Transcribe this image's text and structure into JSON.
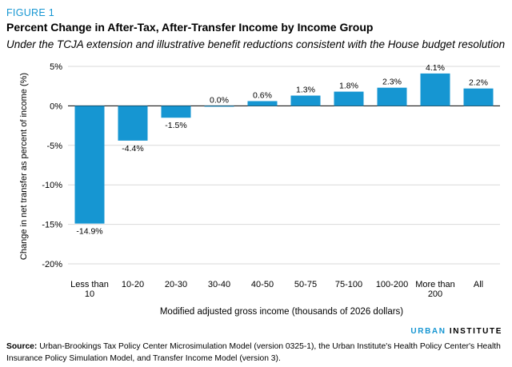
{
  "figure_label": "FIGURE 1",
  "brand": {
    "part1": "URBAN",
    "part2": "INSTITUTE"
  },
  "source": {
    "label": "Source:",
    "text": "Urban-Brookings Tax Policy Center Microsimulation Model (version 0325-1), the Urban Institute's Health Policy Center's Health Insurance Policy Simulation Model, and Transfer Income Model (version 3)."
  },
  "colors": {
    "bar": "#1696d2",
    "accent": "#1696d2",
    "grid": "#d9d9d9"
  },
  "chart_data": {
    "type": "bar",
    "title": "Percent Change in After-Tax, After-Transfer Income by Income Group",
    "subtitle": "Under the TCJA extension and illustrative benefit reductions consistent with the House budget resolution",
    "xlabel": "Modified adjusted gross income (thousands of 2026 dollars)",
    "ylabel": "Change in net transfer as percent of income (%)",
    "categories": [
      "Less than 10",
      "10-20",
      "20-30",
      "30-40",
      "40-50",
      "50-75",
      "75-100",
      "100-200",
      "More than 200",
      "All"
    ],
    "category_lines": [
      [
        "Less than",
        "10"
      ],
      [
        "10-20"
      ],
      [
        "20-30"
      ],
      [
        "30-40"
      ],
      [
        "40-50"
      ],
      [
        "50-75"
      ],
      [
        "75-100"
      ],
      [
        "100-200"
      ],
      [
        "More than",
        "200"
      ],
      [
        "All"
      ]
    ],
    "values": [
      -14.9,
      -4.4,
      -1.5,
      0.0,
      0.6,
      1.3,
      1.8,
      2.3,
      4.1,
      2.2
    ],
    "data_labels": [
      "-14.9%",
      "-4.4%",
      "-1.5%",
      "0.0%",
      "0.6%",
      "1.3%",
      "1.8%",
      "2.3%",
      "4.1%",
      "2.2%"
    ],
    "ylim": [
      -20,
      5
    ],
    "yticks": [
      5,
      0,
      -5,
      -10,
      -15,
      -20
    ],
    "ytick_labels": [
      "5%",
      "0%",
      "-5%",
      "-10%",
      "-15%",
      "-20%"
    ],
    "grid": true,
    "legend": "none"
  }
}
